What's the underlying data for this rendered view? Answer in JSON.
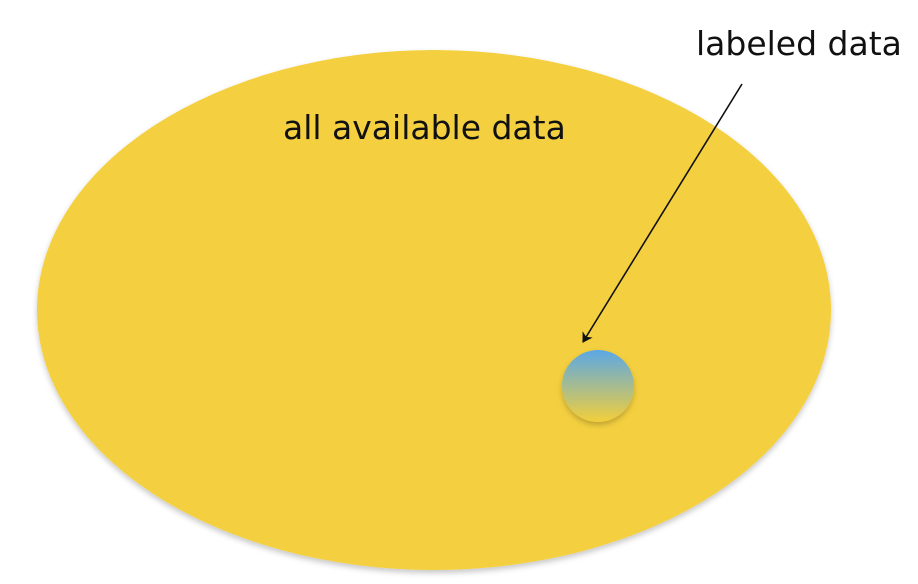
{
  "diagram": {
    "outer_label": "all available data",
    "inner_label": "labeled data"
  },
  "colors": {
    "outer_fill": "#f4d03f",
    "inner_top": "#5aa8e6",
    "inner_bottom": "#f2cf3b",
    "arrow": "#111111"
  }
}
